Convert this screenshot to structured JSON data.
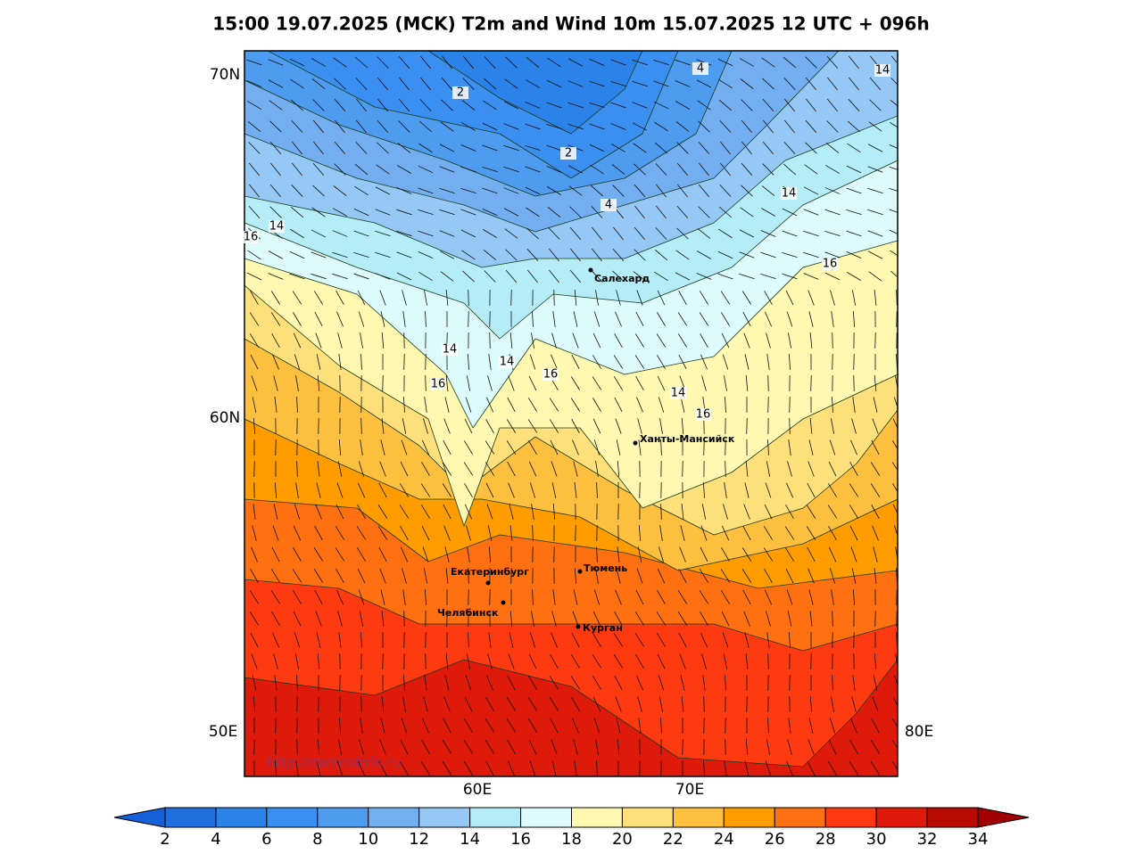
{
  "title": "15:00 19.07.2025 (MCK) T2m and Wind 10m 15.07.2025 12 UTC + 096h",
  "lat_labels": [
    "70N",
    "60N"
  ],
  "lon_labels": [
    "50E",
    "80E",
    "60E",
    "70E"
  ],
  "cities": [
    "Салехард",
    "Ханты-Мансийск",
    "Екатеринбург",
    "Тюмень",
    "Челябинск",
    "Курган"
  ],
  "contour_labels": [
    2,
    2,
    4,
    4,
    14,
    14,
    14,
    16,
    16,
    14,
    14,
    16,
    16,
    14,
    16
  ],
  "watermark": "http://meteoinfo.ru",
  "colorbar": {
    "ticks": [
      2,
      4,
      6,
      8,
      10,
      12,
      14,
      16,
      18,
      20,
      22,
      24,
      26,
      28,
      30,
      32,
      34
    ],
    "colors": [
      "#1f6fe0",
      "#2b82e8",
      "#3a8ff0",
      "#4d9cf0",
      "#72aef0",
      "#96c8f5",
      "#b4ecf8",
      "#ddfbfb",
      "#fff8b0",
      "#ffe07a",
      "#ffc040",
      "#ff9d00",
      "#ff7010",
      "#ff3a10",
      "#e01a0a",
      "#b80a00"
    ],
    "under": "#1560d8",
    "over": "#a00000"
  }
}
